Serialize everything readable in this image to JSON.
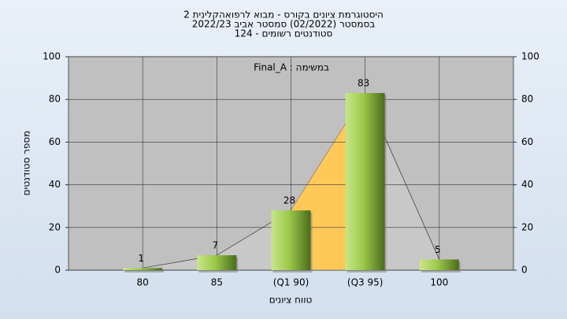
{
  "chart_data": {
    "type": "bar",
    "title": "היסטוגרמת ציונים בקורס - מבוא לרפואהקלינית 2",
    "subtitle": "בסמסטר  (02/2022)  סמסטר אביב 2022/23",
    "subtitle2": "סטודנטים רשומים - 124",
    "annotation": "במשימה : Final_A",
    "x_label": "טווח ציונים",
    "y_label": "מספר סטודנטים",
    "categories": [
      "80",
      "85",
      "(Q1 90)",
      "(Q3 95)",
      "100"
    ],
    "values": [
      1,
      7,
      28,
      83,
      5
    ],
    "color": "#8fbc3a",
    "ylim": [
      0,
      100
    ],
    "yticks": [
      0,
      20,
      40,
      60,
      80,
      100
    ],
    "grid": true
  }
}
